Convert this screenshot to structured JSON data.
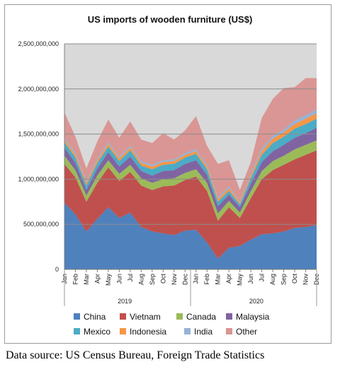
{
  "chart_data": {
    "type": "area",
    "stacked": true,
    "title": "US imports of wooden furniture (US$)",
    "ylim": [
      0,
      2500000000
    ],
    "y_ticks": [
      "0",
      "500,000,000",
      "1,000,000,000",
      "1,500,000,000",
      "2,000,000,000",
      "2,500,000,000"
    ],
    "y_tick_values": [
      0,
      500000000,
      1000000000,
      1500000000,
      2000000000,
      2500000000
    ],
    "categories": [
      "Jan",
      "Feb",
      "Mar",
      "Apr",
      "May",
      "Jun",
      "Jul",
      "Aug",
      "Sep",
      "Oct",
      "Nov",
      "Dec",
      "Jan",
      "Feb",
      "Mar",
      "Apr",
      "May",
      "Jun",
      "Jul",
      "Aug",
      "Sep",
      "Oct",
      "Nov",
      "Dec"
    ],
    "tick_labels": [
      "Jan",
      "Feb",
      "Mar",
      "Apr",
      "May",
      "Jun",
      "Jul",
      "Aug",
      "Sep",
      "Oct",
      "Nov",
      "Dec",
      "Jan",
      "Feb",
      "Mar",
      "Apr",
      "May",
      "Jun",
      "Jul",
      "Aug",
      "Sep",
      "Oct",
      "Nov",
      "Dec"
    ],
    "years": [
      "2019",
      "2020"
    ],
    "grid": true,
    "plot_background": "#d9d9d9",
    "legend_position": "bottom",
    "series": [
      {
        "name": "China",
        "color": "#4f81bd",
        "values": [
          740000000,
          610000000,
          420000000,
          560000000,
          690000000,
          570000000,
          630000000,
          470000000,
          420000000,
          400000000,
          380000000,
          430000000,
          440000000,
          300000000,
          120000000,
          240000000,
          260000000,
          330000000,
          390000000,
          400000000,
          420000000,
          460000000,
          470000000,
          490000000
        ]
      },
      {
        "name": "Vietnam",
        "color": "#c0504d",
        "values": [
          430000000,
          410000000,
          330000000,
          400000000,
          440000000,
          410000000,
          450000000,
          460000000,
          460000000,
          520000000,
          550000000,
          560000000,
          590000000,
          570000000,
          420000000,
          450000000,
          310000000,
          460000000,
          610000000,
          700000000,
          740000000,
          760000000,
          800000000,
          830000000
        ]
      },
      {
        "name": "Canada",
        "color": "#9bbb59",
        "values": [
          90000000,
          80000000,
          70000000,
          80000000,
          80000000,
          80000000,
          80000000,
          80000000,
          80000000,
          80000000,
          80000000,
          80000000,
          80000000,
          90000000,
          80000000,
          70000000,
          60000000,
          80000000,
          90000000,
          100000000,
          100000000,
          110000000,
          110000000,
          110000000
        ]
      },
      {
        "name": "Malaysia",
        "color": "#8064a2",
        "values": [
          90000000,
          80000000,
          60000000,
          80000000,
          90000000,
          80000000,
          90000000,
          80000000,
          80000000,
          90000000,
          90000000,
          100000000,
          100000000,
          90000000,
          80000000,
          70000000,
          60000000,
          80000000,
          100000000,
          110000000,
          120000000,
          130000000,
          130000000,
          140000000
        ]
      },
      {
        "name": "Mexico",
        "color": "#4bacc6",
        "values": [
          60000000,
          60000000,
          50000000,
          60000000,
          60000000,
          60000000,
          70000000,
          60000000,
          70000000,
          70000000,
          70000000,
          70000000,
          70000000,
          60000000,
          50000000,
          40000000,
          30000000,
          60000000,
          80000000,
          90000000,
          90000000,
          100000000,
          100000000,
          100000000
        ]
      },
      {
        "name": "Indonesia",
        "color": "#f79646",
        "values": [
          30000000,
          30000000,
          30000000,
          30000000,
          30000000,
          30000000,
          30000000,
          30000000,
          30000000,
          30000000,
          30000000,
          30000000,
          30000000,
          30000000,
          30000000,
          30000000,
          20000000,
          30000000,
          40000000,
          50000000,
          50000000,
          50000000,
          60000000,
          60000000
        ]
      },
      {
        "name": "India",
        "color": "#95b3d7",
        "values": [
          20000000,
          20000000,
          20000000,
          20000000,
          20000000,
          20000000,
          20000000,
          20000000,
          20000000,
          20000000,
          20000000,
          20000000,
          20000000,
          20000000,
          20000000,
          20000000,
          10000000,
          20000000,
          30000000,
          30000000,
          30000000,
          40000000,
          40000000,
          40000000
        ]
      },
      {
        "name": "Other",
        "color": "#d99694",
        "values": [
          280000000,
          180000000,
          140000000,
          190000000,
          250000000,
          210000000,
          270000000,
          240000000,
          240000000,
          300000000,
          220000000,
          250000000,
          370000000,
          210000000,
          370000000,
          290000000,
          130000000,
          130000000,
          340000000,
          410000000,
          460000000,
          370000000,
          410000000,
          350000000
        ]
      }
    ]
  },
  "source_text": "Data source: US Census Bureau, Foreign Trade Statistics"
}
